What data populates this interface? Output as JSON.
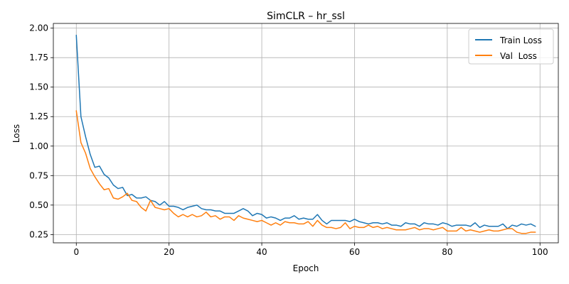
{
  "chart_data": {
    "type": "line",
    "title": "SimCLR – hr_ssl",
    "xlabel": "Epoch",
    "ylabel": "Loss",
    "xlim": [
      -4.95,
      103.95
    ],
    "ylim": [
      0.18,
      2.04
    ],
    "xticks": [
      0,
      20,
      40,
      60,
      80,
      100
    ],
    "xtick_labels": [
      "0",
      "20",
      "40",
      "60",
      "80",
      "100"
    ],
    "yticks": [
      0.25,
      0.5,
      0.75,
      1.0,
      1.25,
      1.5,
      1.75,
      2.0
    ],
    "ytick_labels": [
      "0.25",
      "0.50",
      "0.75",
      "1.00",
      "1.25",
      "1.50",
      "1.75",
      "2.00"
    ],
    "grid": true,
    "legend_position": "top-right",
    "series": [
      {
        "name": "Train Loss",
        "color": "#1f77b4",
        "x": [
          0,
          1,
          2,
          3,
          4,
          5,
          6,
          7,
          8,
          9,
          10,
          11,
          12,
          13,
          14,
          15,
          16,
          17,
          18,
          19,
          20,
          21,
          22,
          23,
          24,
          25,
          26,
          27,
          28,
          29,
          30,
          31,
          32,
          33,
          34,
          35,
          36,
          37,
          38,
          39,
          40,
          41,
          42,
          43,
          44,
          45,
          46,
          47,
          48,
          49,
          50,
          51,
          52,
          53,
          54,
          55,
          56,
          57,
          58,
          59,
          60,
          61,
          62,
          63,
          64,
          65,
          66,
          67,
          68,
          69,
          70,
          71,
          72,
          73,
          74,
          75,
          76,
          77,
          78,
          79,
          80,
          81,
          82,
          83,
          84,
          85,
          86,
          87,
          88,
          89,
          90,
          91,
          92,
          93,
          94,
          95,
          96,
          97,
          98,
          99
        ],
        "values": [
          1.94,
          1.25,
          1.08,
          0.93,
          0.82,
          0.83,
          0.76,
          0.73,
          0.67,
          0.64,
          0.65,
          0.58,
          0.59,
          0.56,
          0.56,
          0.57,
          0.54,
          0.53,
          0.5,
          0.53,
          0.49,
          0.49,
          0.48,
          0.46,
          0.48,
          0.49,
          0.5,
          0.47,
          0.46,
          0.46,
          0.45,
          0.45,
          0.43,
          0.43,
          0.43,
          0.45,
          0.47,
          0.45,
          0.41,
          0.43,
          0.42,
          0.39,
          0.4,
          0.39,
          0.37,
          0.39,
          0.39,
          0.41,
          0.38,
          0.39,
          0.38,
          0.38,
          0.42,
          0.37,
          0.34,
          0.37,
          0.37,
          0.37,
          0.37,
          0.36,
          0.38,
          0.36,
          0.35,
          0.34,
          0.35,
          0.35,
          0.34,
          0.35,
          0.33,
          0.33,
          0.32,
          0.35,
          0.34,
          0.34,
          0.32,
          0.35,
          0.34,
          0.34,
          0.33,
          0.35,
          0.34,
          0.32,
          0.33,
          0.33,
          0.33,
          0.32,
          0.35,
          0.31,
          0.33,
          0.32,
          0.32,
          0.32,
          0.34,
          0.3,
          0.33,
          0.32,
          0.34,
          0.33,
          0.34,
          0.32
        ]
      },
      {
        "name": "Val  Loss",
        "color": "#ff7f0e",
        "x": [
          0,
          1,
          2,
          3,
          4,
          5,
          6,
          7,
          8,
          9,
          10,
          11,
          12,
          13,
          14,
          15,
          16,
          17,
          18,
          19,
          20,
          21,
          22,
          23,
          24,
          25,
          26,
          27,
          28,
          29,
          30,
          31,
          32,
          33,
          34,
          35,
          36,
          37,
          38,
          39,
          40,
          41,
          42,
          43,
          44,
          45,
          46,
          47,
          48,
          49,
          50,
          51,
          52,
          53,
          54,
          55,
          56,
          57,
          58,
          59,
          60,
          61,
          62,
          63,
          64,
          65,
          66,
          67,
          68,
          69,
          70,
          71,
          72,
          73,
          74,
          75,
          76,
          77,
          78,
          79,
          80,
          81,
          82,
          83,
          84,
          85,
          86,
          87,
          88,
          89,
          90,
          91,
          92,
          93,
          94,
          95,
          96,
          97,
          98,
          99
        ],
        "values": [
          1.3,
          1.03,
          0.94,
          0.81,
          0.74,
          0.68,
          0.63,
          0.64,
          0.56,
          0.55,
          0.57,
          0.6,
          0.54,
          0.53,
          0.48,
          0.45,
          0.54,
          0.48,
          0.47,
          0.46,
          0.47,
          0.43,
          0.4,
          0.42,
          0.4,
          0.42,
          0.4,
          0.41,
          0.44,
          0.4,
          0.41,
          0.38,
          0.4,
          0.4,
          0.37,
          0.41,
          0.39,
          0.38,
          0.37,
          0.36,
          0.37,
          0.35,
          0.33,
          0.35,
          0.33,
          0.36,
          0.35,
          0.35,
          0.34,
          0.34,
          0.36,
          0.32,
          0.37,
          0.33,
          0.31,
          0.31,
          0.3,
          0.31,
          0.35,
          0.3,
          0.32,
          0.31,
          0.31,
          0.33,
          0.31,
          0.32,
          0.3,
          0.31,
          0.3,
          0.29,
          0.29,
          0.29,
          0.3,
          0.31,
          0.29,
          0.3,
          0.3,
          0.29,
          0.3,
          0.31,
          0.28,
          0.28,
          0.28,
          0.31,
          0.28,
          0.29,
          0.28,
          0.27,
          0.28,
          0.29,
          0.28,
          0.28,
          0.29,
          0.3,
          0.3,
          0.27,
          0.26,
          0.26,
          0.27,
          0.27
        ]
      }
    ]
  }
}
